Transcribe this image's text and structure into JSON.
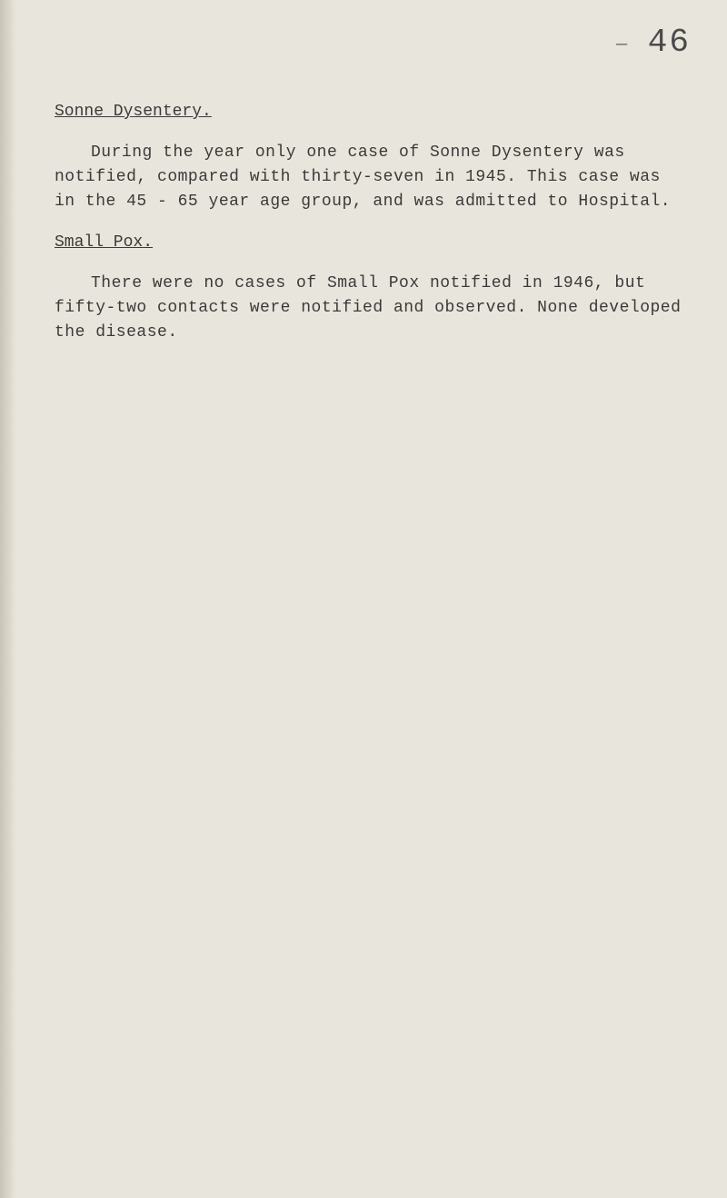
{
  "page_number": "46",
  "dash": "—",
  "section1": {
    "title": "Sonne Dysentery.",
    "paragraph": "During the year only one case of Sonne Dysentery was notified, compared with thirty-seven in 1945. This case was in the 45 - 65 year age group, and was admitted to Hospital."
  },
  "section2": {
    "title": "Small Pox.",
    "paragraph": "There were no cases of Small Pox notified in 1946, but fifty-two contacts were notified and observed. None developed the disease."
  },
  "colors": {
    "background": "#e8e6dc",
    "text": "#3a3a3a",
    "page_number": "#4a4a4a"
  },
  "typography": {
    "font_family": "Courier New",
    "body_fontsize": 18,
    "page_number_fontsize": 36,
    "line_height": 1.5
  }
}
